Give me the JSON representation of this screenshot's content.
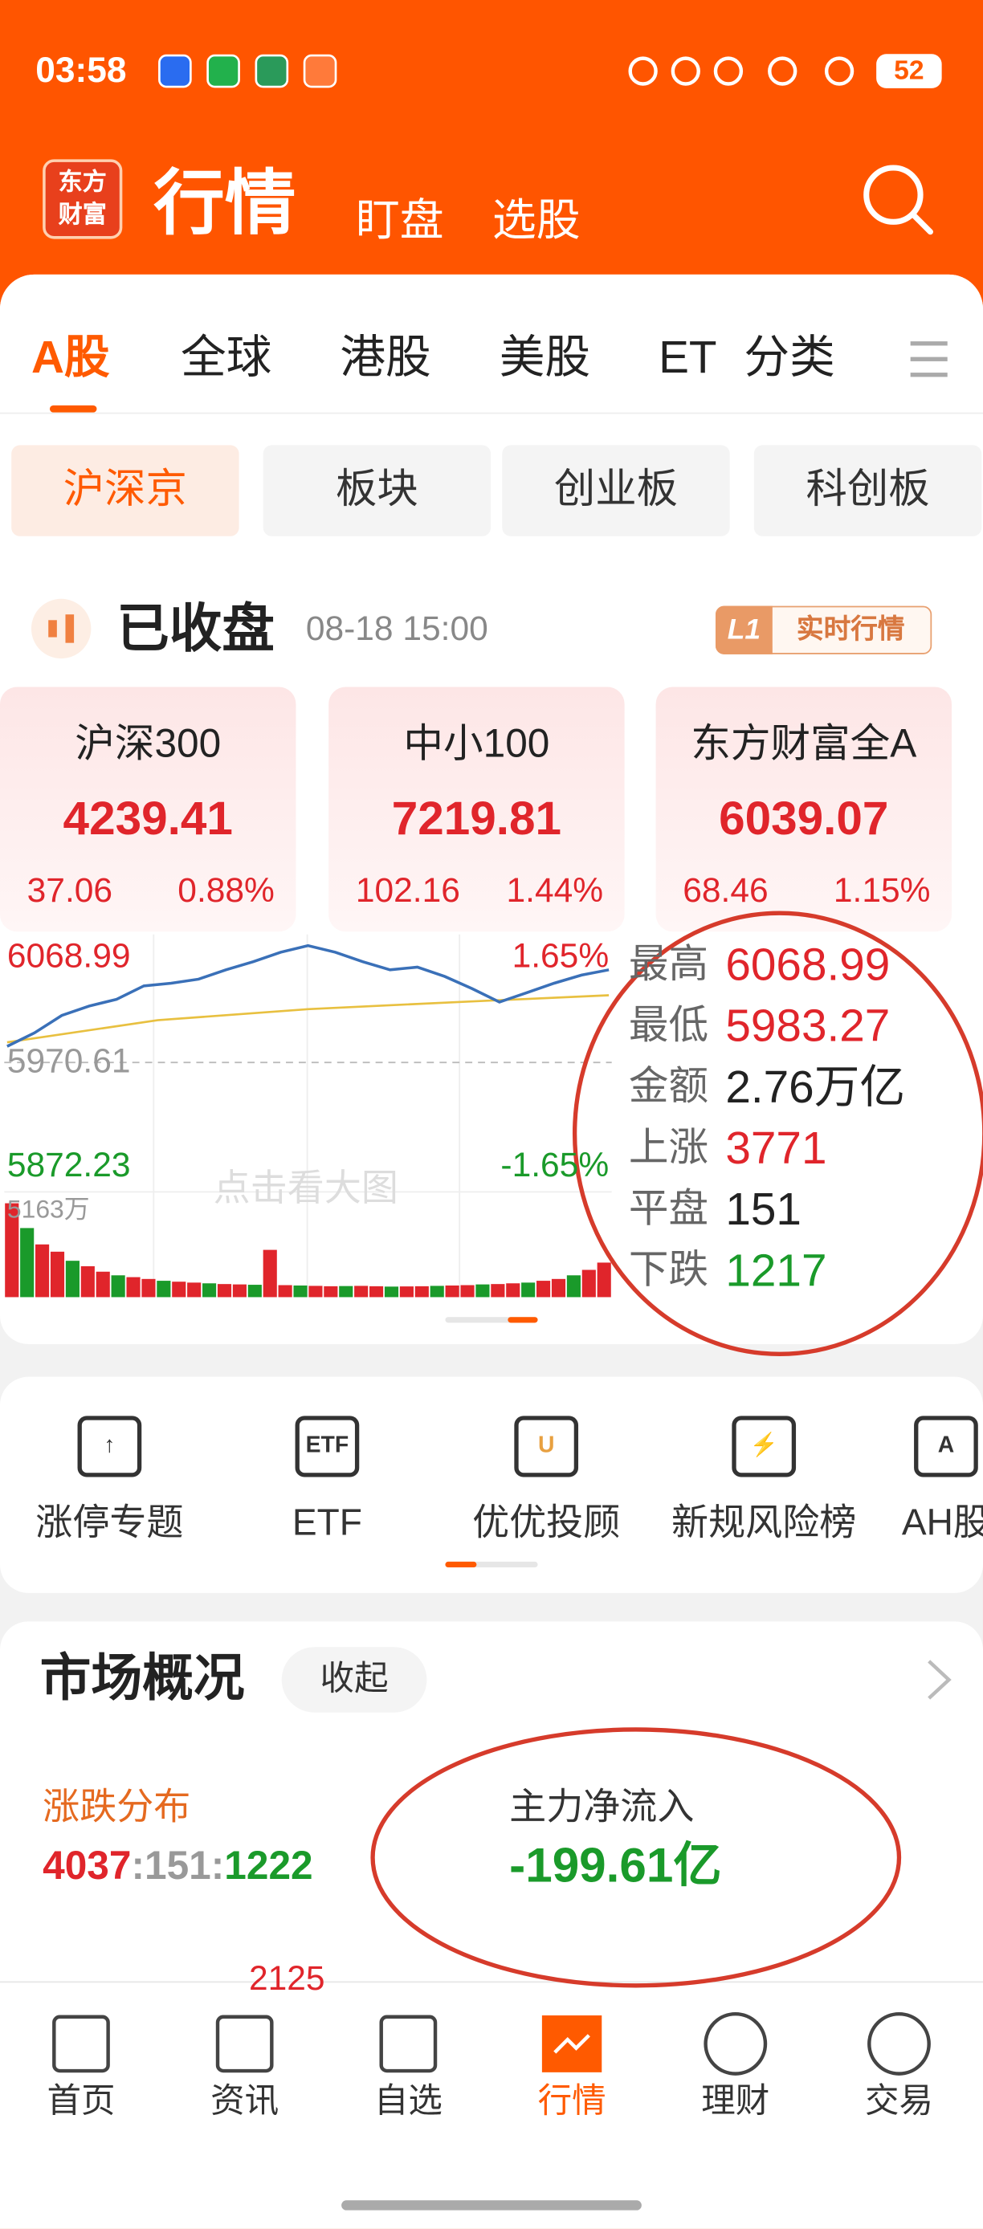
{
  "status_bar": {
    "time": "03:58",
    "battery": "52"
  },
  "header": {
    "logo": [
      "东方",
      "财富"
    ],
    "title": "行情",
    "tabs": [
      "盯盘",
      "选股"
    ]
  },
  "market_tabs": {
    "items": [
      "A股",
      "全球",
      "港股",
      "美股",
      "ET",
      "分类"
    ],
    "active": 0
  },
  "sub_tabs": {
    "items": [
      "沪深京",
      "板块",
      "创业板",
      "科创板"
    ],
    "active": 0
  },
  "market_status": {
    "label": "已收盘",
    "time": "08-18 15:00",
    "badge_level": "L1",
    "badge_text": "实时行情"
  },
  "indices": [
    {
      "name": "沪深300",
      "price": "4239.41",
      "change": "37.06",
      "change_pct": "0.88%"
    },
    {
      "name": "中小100",
      "price": "7219.81",
      "change": "102.16",
      "change_pct": "1.44%"
    },
    {
      "name": "东方财富全A",
      "price": "6039.07",
      "change": "68.46",
      "change_pct": "1.15%"
    }
  ],
  "mini_chart": {
    "ylim": [
      5872.23,
      6068.99
    ],
    "yticks": [
      5872.23,
      5970.61,
      6068.99
    ],
    "pct_high": "1.65%",
    "pct_low": "-1.65%",
    "volume_max_label": "5163万",
    "hint": "点击看大图",
    "price_series": [
      5983.73,
      5994.66,
      6008.87,
      6016.52,
      6021.99,
      6032.92,
      6035.1,
      6038.4,
      6046.0,
      6052.6,
      6060.3,
      6065.7,
      6060.3,
      6052.6,
      6046.0,
      6048.2,
      6040.6,
      6030.7,
      6019.8,
      6027.4,
      6035.1,
      6041.7,
      6046.0
    ],
    "avg_series": [
      5987.0,
      6005.0,
      6014.0,
      6019.8,
      6025.3
    ],
    "volume_series": [
      5163,
      3800,
      2900,
      2500,
      2000,
      1700,
      1400,
      1200,
      1100,
      1000,
      900,
      850,
      800,
      760,
      720,
      700,
      680,
      2600,
      660,
      640,
      620,
      600,
      610,
      620,
      600,
      580,
      590,
      600,
      620,
      640,
      660,
      700,
      720,
      760,
      800,
      900,
      1000,
      1200,
      1500,
      1900
    ]
  },
  "stats": [
    {
      "label": "最高",
      "value": "6068.99",
      "color": "#e0252b"
    },
    {
      "label": "最低",
      "value": "5983.27",
      "color": "#e0252b"
    },
    {
      "label": "金额",
      "value": "2.76万亿",
      "color": "#222222"
    },
    {
      "label": "上涨",
      "value": "3771",
      "color": "#e0252b"
    },
    {
      "label": "平盘",
      "value": "151",
      "color": "#222222"
    },
    {
      "label": "下跌",
      "value": "1217",
      "color": "#1a9a2a"
    }
  ],
  "tools": [
    {
      "label": "涨停专题",
      "icon": "↑"
    },
    {
      "label": "ETF",
      "icon": "ETF"
    },
    {
      "label": "优优投顾",
      "icon": "U"
    },
    {
      "label": "新规风险榜",
      "icon": "⚡"
    },
    {
      "label": "AH股",
      "icon": "A"
    }
  ],
  "overview": {
    "title": "市场概况",
    "collapse": "收起",
    "dist_label": "涨跌分布",
    "dist_up": "4037",
    "separator": ":",
    "dist_flat": "151",
    "dist_down": "1222",
    "flow_label": "主力净流入",
    "flow_value": "-199.61亿",
    "partial": "2125"
  },
  "bottom_nav": {
    "items": [
      "首页",
      "资讯",
      "自选",
      "行情",
      "理财",
      "交易"
    ],
    "active": 3
  }
}
